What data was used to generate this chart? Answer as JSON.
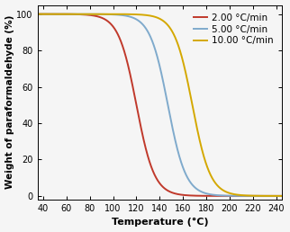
{
  "title": "",
  "xlabel": "Temperature (°C)",
  "ylabel": "Weight of paraformaldehyde (%)",
  "xlim": [
    35,
    245
  ],
  "ylim": [
    -2,
    105
  ],
  "xticks": [
    40,
    60,
    80,
    100,
    120,
    140,
    160,
    180,
    200,
    220,
    240
  ],
  "yticks": [
    0,
    20,
    40,
    60,
    80,
    100
  ],
  "curves": [
    {
      "label": "2.00 °C/min",
      "color": "#c0392b",
      "midpoint": 120.0,
      "steepness": 0.13
    },
    {
      "label": "5.00 °C/min",
      "color": "#7faacc",
      "midpoint": 147.0,
      "steepness": 0.13
    },
    {
      "label": "10.00 °C/min",
      "color": "#d4a800",
      "midpoint": 168.0,
      "steepness": 0.13
    }
  ],
  "background_color": "#f5f5f5",
  "linewidth": 1.4,
  "xlabel_fontsize": 8,
  "ylabel_fontsize": 7.5,
  "tick_fontsize": 7,
  "legend_fontsize": 7.5
}
